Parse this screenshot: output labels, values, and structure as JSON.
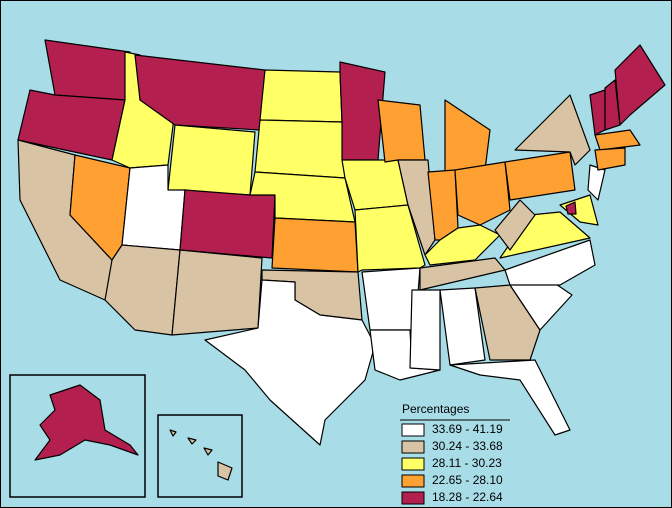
{
  "map": {
    "legend": {
      "title": "Percentages",
      "items": [
        {
          "label": "33.69 - 41.19",
          "color": "#ffffff"
        },
        {
          "label": "30.24 - 33.68",
          "color": "#d8c3a5"
        },
        {
          "label": "28.11 - 30.23",
          "color": "#ffff66"
        },
        {
          "label": "22.65 - 28.10",
          "color": "#ffa033"
        },
        {
          "label": "18.28 - 22.64",
          "color": "#b3204f"
        }
      ]
    }
  }
}
